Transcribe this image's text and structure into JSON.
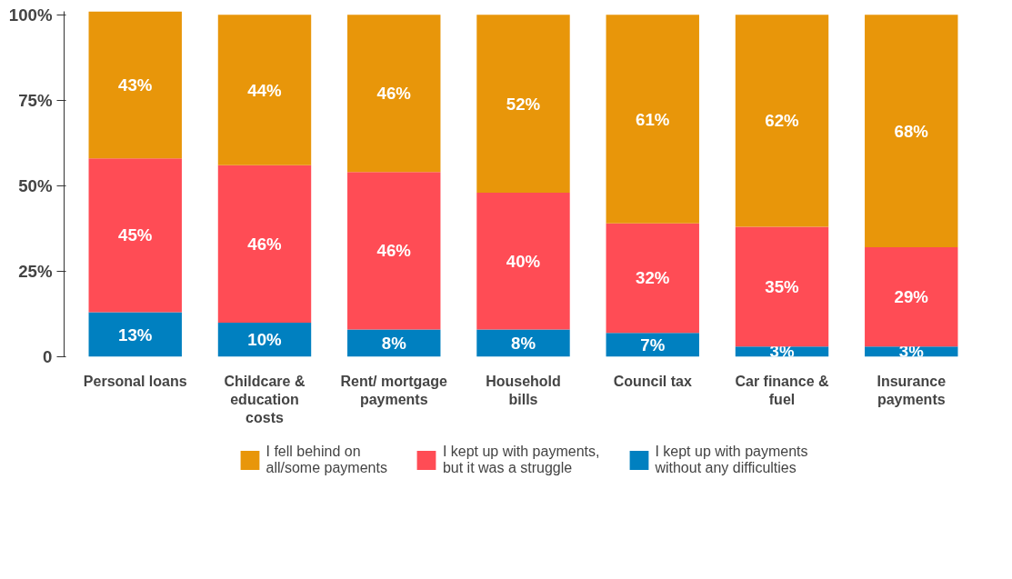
{
  "chart_data": {
    "type": "bar",
    "stacked": true,
    "categories": [
      "Personal loans",
      "Childcare & education costs",
      "Rent/ mortgage payments",
      "Household bills",
      "Council tax",
      "Car finance & fuel",
      "Insurance payments"
    ],
    "series": [
      {
        "name": "I kept up with payments without any difficulties",
        "color": "#0080c0",
        "values": [
          13,
          10,
          8,
          8,
          7,
          3,
          3
        ],
        "value_labels": [
          "13%",
          "10%",
          "8%",
          "8%",
          "7%",
          "3%",
          "3%"
        ]
      },
      {
        "name": "I kept up with payments, but it was a struggle",
        "color": "#ff4c55",
        "values": [
          45,
          46,
          46,
          40,
          32,
          35,
          29
        ],
        "value_labels": [
          "45%",
          "46%",
          "46%",
          "40%",
          "32%",
          "35%",
          "29%"
        ]
      },
      {
        "name": "I fell behind on all/some payments",
        "color": "#e8960a",
        "values": [
          43,
          44,
          46,
          52,
          61,
          62,
          68
        ],
        "value_labels": [
          "43%",
          "44%",
          "46%",
          "52%",
          "61%",
          "62%",
          "68%"
        ]
      }
    ],
    "ylim": [
      0,
      101
    ],
    "yticks": [
      {
        "value": 0,
        "label": "0"
      },
      {
        "value": 25,
        "label": "25%"
      },
      {
        "value": 50,
        "label": "50%"
      },
      {
        "value": 75,
        "label": "75%"
      },
      {
        "value": 100,
        "label": "100%"
      }
    ],
    "grid": false,
    "legend": "bottom"
  }
}
